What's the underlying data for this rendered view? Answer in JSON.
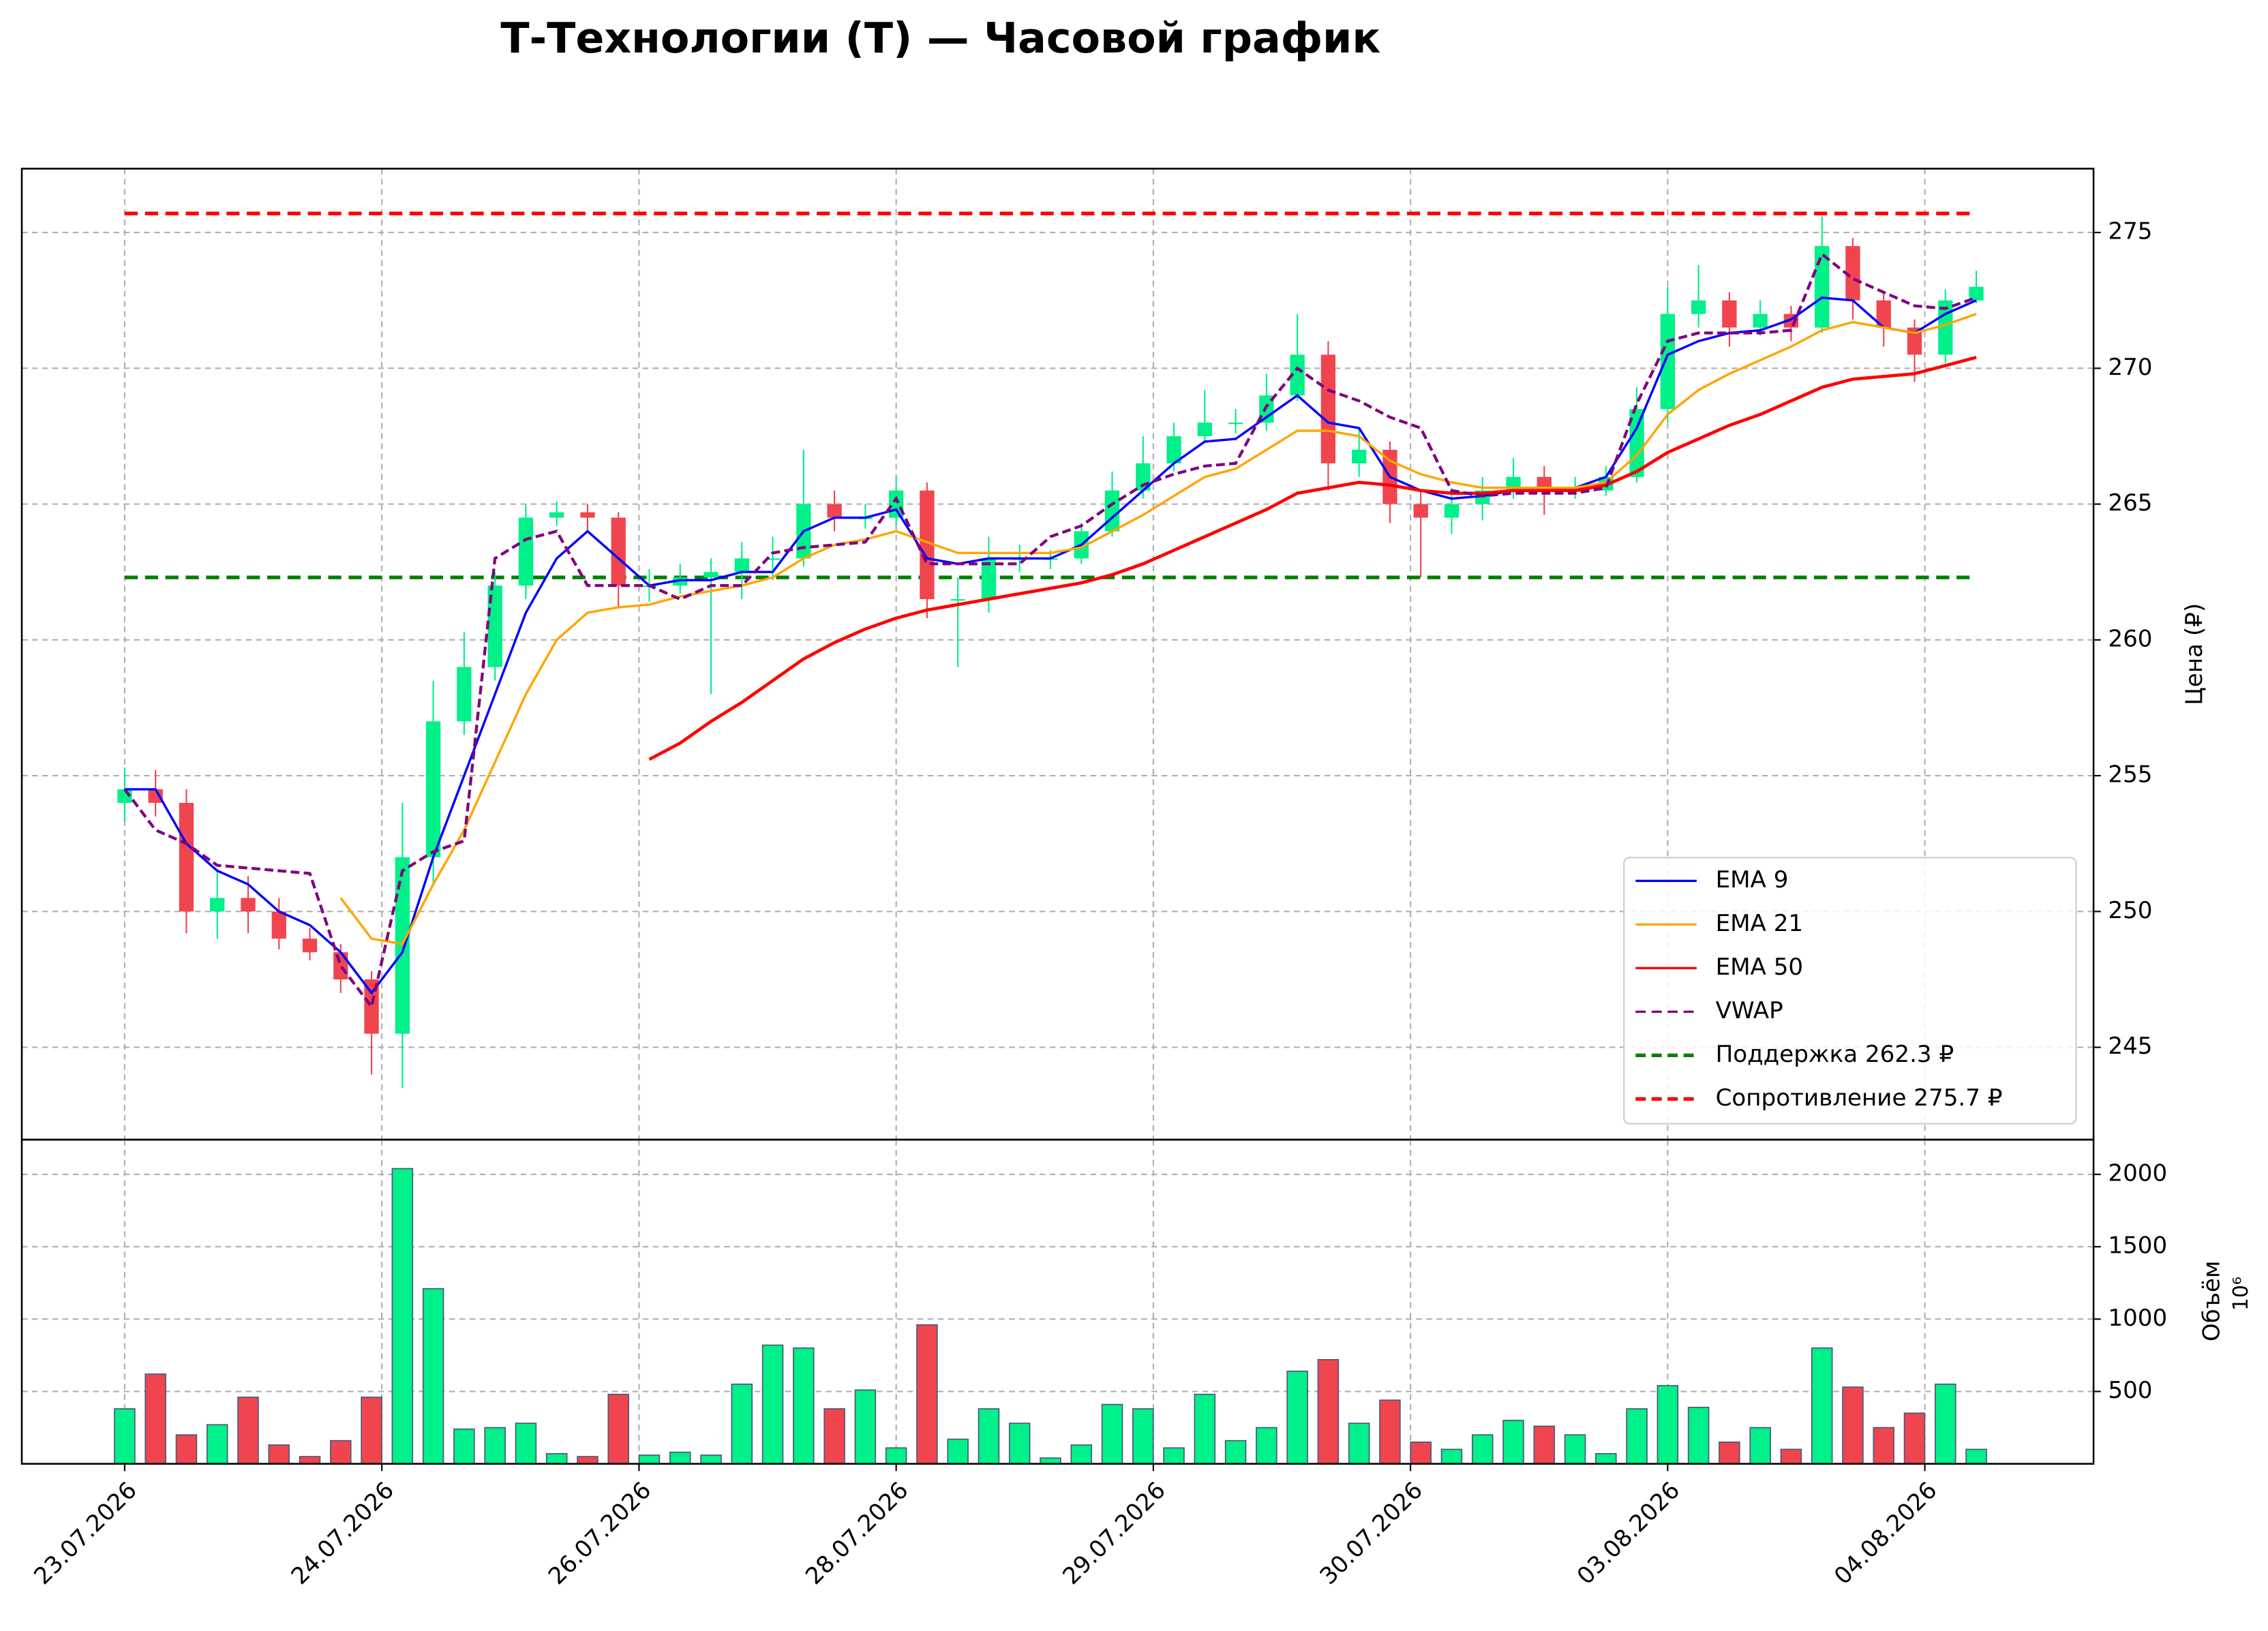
{
  "chart_data": [
    {
      "type": "candlestick",
      "title": "Т-Технологии (T) — Часовой график",
      "ylabel": "Цена (₽)",
      "x": [
        0,
        3,
        6,
        9,
        12,
        15,
        18,
        21,
        24,
        27,
        30,
        33,
        36,
        39,
        42,
        45,
        48,
        51,
        54,
        57,
        60,
        63,
        66,
        69,
        72,
        75,
        78,
        81,
        84,
        87,
        90,
        93,
        96,
        99,
        102,
        105,
        108,
        111,
        114,
        117,
        120,
        123,
        126,
        129,
        132,
        135,
        138,
        141,
        144,
        147,
        150,
        153,
        156,
        159,
        162,
        165,
        168,
        171,
        174,
        177,
        180
      ],
      "open": [
        254,
        254.5,
        254,
        250,
        250.5,
        250,
        249,
        248.5,
        247.5,
        245.5,
        252,
        257,
        259,
        262,
        264.5,
        264.7,
        264.5,
        262,
        262,
        262.3,
        262.5,
        263,
        263,
        265,
        264.5,
        264.5,
        265.5,
        261.5,
        261.5,
        263,
        263,
        263,
        264,
        265.5,
        266.5,
        267.5,
        268,
        268,
        269,
        270.5,
        266.5,
        267,
        265,
        264.5,
        265,
        265.5,
        266,
        265.5,
        265.5,
        266,
        268.5,
        272,
        272.5,
        271.5,
        272,
        271.5,
        274.5,
        272.5,
        271.5,
        270.5,
        272.5
      ],
      "high": [
        255.3,
        255.2,
        254.5,
        251.5,
        251.3,
        250.5,
        249.4,
        248.8,
        247.8,
        254,
        258.5,
        260.3,
        262.5,
        265,
        265.1,
        265,
        264.7,
        262.6,
        262.8,
        263,
        263.6,
        263.8,
        267,
        265.5,
        265,
        266,
        265.8,
        262.3,
        263.8,
        263.5,
        263.3,
        264.3,
        266.2,
        267.5,
        268,
        269.2,
        268.5,
        269.8,
        272,
        271,
        267.8,
        267.3,
        265.5,
        265.6,
        266,
        266.7,
        266.4,
        266,
        266.4,
        269.3,
        273,
        273.8,
        272.8,
        272.5,
        272.3,
        275.6,
        274.8,
        272.8,
        271.8,
        272.9,
        273.6
      ],
      "low": [
        253.3,
        253.5,
        249.2,
        249,
        249.2,
        248.6,
        248.2,
        247,
        244,
        243.5,
        251,
        256.5,
        258.5,
        261.5,
        264.2,
        264,
        261.2,
        261.4,
        261.7,
        258,
        261.5,
        262.2,
        262.7,
        264,
        264.1,
        264.2,
        260.8,
        259,
        261,
        262.5,
        262.6,
        262.8,
        263.8,
        265.2,
        266.2,
        267.3,
        267.6,
        267.7,
        268.8,
        265.5,
        266,
        264.3,
        262.3,
        263.9,
        264.4,
        265.2,
        264.6,
        265.2,
        265.3,
        265.8,
        268,
        271.5,
        270.8,
        271.2,
        271,
        271.3,
        271.8,
        270.8,
        269.5,
        270.2,
        272.4
      ],
      "close": [
        254.5,
        254,
        250,
        250.5,
        250,
        249,
        248.5,
        247.5,
        245.5,
        252,
        257,
        259,
        262,
        264.5,
        264.7,
        264.5,
        262,
        262,
        262.3,
        262.5,
        263,
        263,
        265,
        264.5,
        264.5,
        265.5,
        261.5,
        261.5,
        263,
        263,
        263,
        264,
        265.5,
        266.5,
        267.5,
        268,
        268,
        269,
        270.5,
        266.5,
        267,
        265,
        264.5,
        265,
        265.5,
        266,
        265.5,
        265.5,
        266,
        268.5,
        272,
        272.5,
        271.5,
        272,
        271.5,
        274.5,
        272.5,
        271.5,
        270.5,
        272.5,
        273
      ],
      "up_color": "#00f08a",
      "down_color": "#f0454f",
      "series": [
        {
          "name": "EMA 9",
          "color": "#0000ff",
          "style": "solid",
          "values": [
            254.5,
            254.5,
            252.5,
            251.5,
            251,
            250,
            249.5,
            248.5,
            247,
            248.5,
            252,
            255,
            258,
            261,
            263,
            264,
            263,
            262,
            262.2,
            262.2,
            262.5,
            262.5,
            264,
            264.5,
            264.5,
            264.8,
            263,
            262.8,
            263,
            263,
            263,
            263.5,
            264.5,
            265.5,
            266.5,
            267.3,
            267.4,
            268.2,
            269,
            268,
            267.8,
            266,
            265.5,
            265.2,
            265.3,
            265.5,
            265.5,
            265.6,
            266,
            267.8,
            270.5,
            271,
            271.3,
            271.4,
            271.8,
            272.6,
            272.5,
            271.5,
            271.3,
            272,
            272.5
          ]
        },
        {
          "name": "EMA 21",
          "color": "#ffa500",
          "style": "solid",
          "values": [
            null,
            null,
            null,
            null,
            null,
            null,
            null,
            250.5,
            249,
            248.8,
            251,
            253,
            255.5,
            258,
            260,
            261,
            261.2,
            261.3,
            261.6,
            261.8,
            262,
            262.3,
            263,
            263.5,
            263.7,
            264,
            263.6,
            263.2,
            263.2,
            263.2,
            263.2,
            263.4,
            264,
            264.6,
            265.3,
            266,
            266.3,
            267,
            267.7,
            267.7,
            267.5,
            266.6,
            266.1,
            265.8,
            265.6,
            265.6,
            265.6,
            265.6,
            265.8,
            266.8,
            268.3,
            269.2,
            269.8,
            270.3,
            270.8,
            271.4,
            271.7,
            271.5,
            271.3,
            271.6,
            272
          ]
        },
        {
          "name": "EMA 50",
          "color": "#ff0000",
          "style": "solid",
          "values": [
            null,
            null,
            null,
            null,
            null,
            null,
            null,
            null,
            null,
            null,
            null,
            null,
            null,
            null,
            null,
            null,
            null,
            255.6,
            256.2,
            257,
            257.7,
            258.5,
            259.3,
            259.9,
            260.4,
            260.8,
            261.1,
            261.3,
            261.5,
            261.7,
            261.9,
            262.1,
            262.4,
            262.8,
            263.3,
            263.8,
            264.3,
            264.8,
            265.4,
            265.6,
            265.8,
            265.7,
            265.5,
            265.4,
            265.4,
            265.5,
            265.5,
            265.5,
            265.7,
            266.2,
            266.9,
            267.4,
            267.9,
            268.3,
            268.8,
            269.3,
            269.6,
            269.7,
            269.8,
            270.1,
            270.4
          ]
        },
        {
          "name": "VWAP",
          "color": "#800080",
          "style": "dashed",
          "values": [
            254.5,
            253,
            252.5,
            251.7,
            251.6,
            251.5,
            251.4,
            248,
            246.5,
            251.5,
            252.2,
            252.6,
            263,
            263.7,
            264,
            262,
            262,
            262,
            261.5,
            262,
            262,
            263.2,
            263.4,
            263.5,
            263.6,
            265.2,
            262.8,
            262.8,
            262.8,
            262.8,
            263.8,
            264.2,
            265,
            265.7,
            266.1,
            266.4,
            266.5,
            268.6,
            270,
            269.2,
            268.8,
            268.2,
            267.8,
            265.5,
            265.3,
            265.4,
            265.4,
            265.4,
            265.6,
            268.7,
            271,
            271.3,
            271.3,
            271.3,
            271.4,
            274.2,
            273.3,
            272.8,
            272.3,
            272.2,
            272.6
          ]
        }
      ],
      "levels": [
        {
          "name": "Поддержка 262.3 ₽",
          "value": 262.3,
          "color": "#008000"
        },
        {
          "name": "Сопротивление 275.7 ₽",
          "value": 275.7,
          "color": "#ff0000"
        }
      ],
      "xlim": [
        -10,
        191.4
      ],
      "ylim": [
        241.6,
        277.35
      ],
      "yticks": [
        245,
        250,
        255,
        260,
        265,
        270,
        275
      ],
      "grid": true,
      "legend": "lower right"
    },
    {
      "type": "bar",
      "ylabel": "Объём",
      "offset_label": "10⁶",
      "values": [
        380,
        620,
        200,
        270,
        460,
        130,
        50,
        160,
        460,
        2040,
        1210,
        240,
        250,
        280,
        70,
        50,
        480,
        60,
        80,
        60,
        550,
        820,
        800,
        380,
        510,
        110,
        960,
        170,
        380,
        280,
        40,
        130,
        410,
        380,
        110,
        480,
        160,
        250,
        640,
        720,
        280,
        440,
        150,
        100,
        200,
        300,
        260,
        200,
        70,
        380,
        540,
        390,
        150,
        250,
        100,
        800,
        530,
        250,
        350,
        550,
        100
      ],
      "edge_color": "#4a5a7a",
      "ylim": [
        0,
        2240
      ],
      "yticks": [
        500,
        1000,
        1500,
        2000
      ],
      "xticks": [
        {
          "value": 0,
          "label": "23.07.2026"
        },
        {
          "value": 25,
          "label": "24.07.2026"
        },
        {
          "value": 50,
          "label": "26.07.2026"
        },
        {
          "value": 75,
          "label": "28.07.2026"
        },
        {
          "value": 100,
          "label": "29.07.2026"
        },
        {
          "value": 125,
          "label": "30.07.2026"
        },
        {
          "value": 150,
          "label": "03.08.2026"
        },
        {
          "value": 175,
          "label": "04.08.2026"
        }
      ],
      "grid": true
    }
  ]
}
